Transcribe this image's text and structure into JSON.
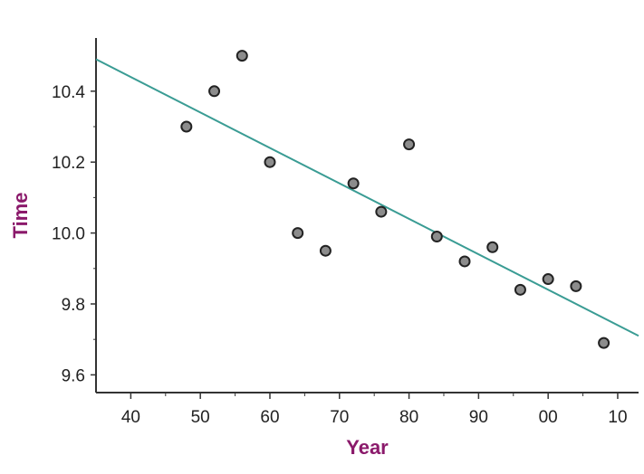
{
  "chart_data": {
    "type": "scatter",
    "title": "",
    "xlabel": "Year",
    "ylabel": "Time",
    "xlim": [
      1935,
      2013
    ],
    "ylim": [
      9.55,
      10.55
    ],
    "x_ticks": [
      1940,
      1950,
      1960,
      1970,
      1980,
      1990,
      2000,
      2010
    ],
    "x_tick_labels": [
      "40",
      "50",
      "60",
      "70",
      "80",
      "90",
      "00",
      "10"
    ],
    "y_ticks": [
      9.6,
      9.8,
      10.0,
      10.2,
      10.4
    ],
    "y_tick_labels": [
      "9.6",
      "9.8",
      "10.0",
      "10.2",
      "10.4"
    ],
    "grid": false,
    "points": [
      {
        "x": 1948,
        "y": 10.3
      },
      {
        "x": 1952,
        "y": 10.4
      },
      {
        "x": 1956,
        "y": 10.5
      },
      {
        "x": 1960,
        "y": 10.2
      },
      {
        "x": 1964,
        "y": 10.0
      },
      {
        "x": 1968,
        "y": 9.95
      },
      {
        "x": 1972,
        "y": 10.14
      },
      {
        "x": 1976,
        "y": 10.06
      },
      {
        "x": 1980,
        "y": 10.25
      },
      {
        "x": 1984,
        "y": 9.99
      },
      {
        "x": 1988,
        "y": 9.92
      },
      {
        "x": 1992,
        "y": 9.96
      },
      {
        "x": 1996,
        "y": 9.84
      },
      {
        "x": 2000,
        "y": 9.87
      },
      {
        "x": 2004,
        "y": 9.85
      },
      {
        "x": 2008,
        "y": 9.69
      }
    ],
    "trend_line": {
      "x": [
        1935,
        2013
      ],
      "y": [
        10.49,
        9.71
      ]
    },
    "colors": {
      "trend_line": "#3a9c94",
      "point_fill": "#8c8c8c",
      "point_stroke": "#222222",
      "axis_title": "#8b1a6b",
      "axis": "#333333"
    }
  }
}
